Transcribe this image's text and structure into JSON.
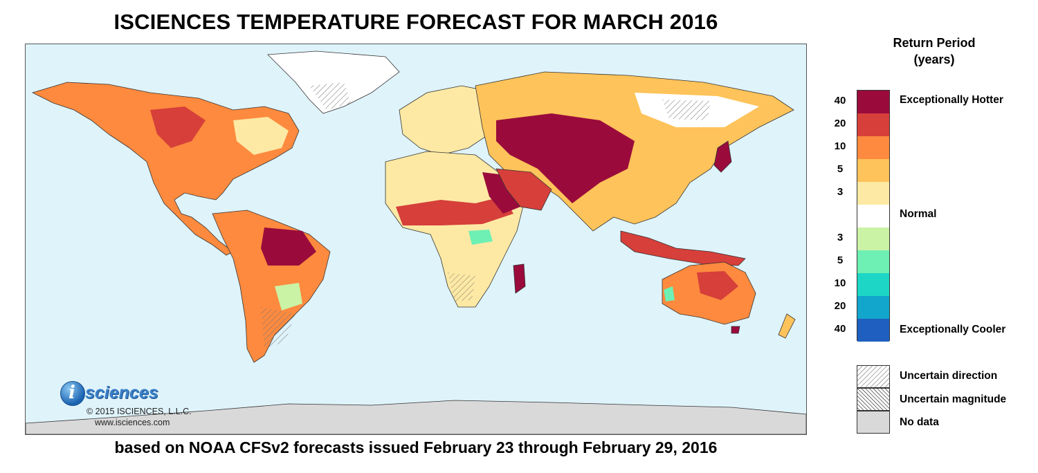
{
  "title": "ISCIENCES TEMPERATURE FORECAST FOR MARCH 2016",
  "subtitle": "based on NOAA CFSv2 forecasts issued February 23 through February 29, 2016",
  "logo": {
    "icon_letter": "i",
    "wordmark": "sciences",
    "copyright": "© 2015 ISCIENCES, L.L.C.",
    "website": "www.isciences.com"
  },
  "legend": {
    "title_line1": "Return Period",
    "title_line2": "(years)",
    "bins": [
      {
        "tick": "40",
        "color": "#9a0b3c"
      },
      {
        "tick": "20",
        "color": "#d63f3a"
      },
      {
        "tick": "10",
        "color": "#fd8a3e"
      },
      {
        "tick": "5",
        "color": "#fec35a"
      },
      {
        "tick": "3",
        "color": "#fde9a4"
      },
      {
        "tick": "",
        "color": "#ffffff"
      },
      {
        "tick": "3",
        "color": "#cbf3a5"
      },
      {
        "tick": "5",
        "color": "#6ef0b4"
      },
      {
        "tick": "10",
        "color": "#1ed6c6"
      },
      {
        "tick": "20",
        "color": "#12a6cc"
      },
      {
        "tick": "40",
        "color": "#1f5fbf"
      }
    ],
    "label_hot": "Exceptionally Hotter",
    "label_normal": "Normal",
    "label_cool": "Exceptionally Cooler",
    "key": [
      {
        "label": "Uncertain direction",
        "pattern": "diagonal-hatch"
      },
      {
        "label": "Uncertain magnitude",
        "pattern": "cross-hatch"
      },
      {
        "label": "No data",
        "pattern": "solid-gray"
      }
    ]
  },
  "map": {
    "ocean_color": "#dff3fb",
    "no_data_color": "#d9d9d9",
    "boundary_color": "#333333"
  }
}
